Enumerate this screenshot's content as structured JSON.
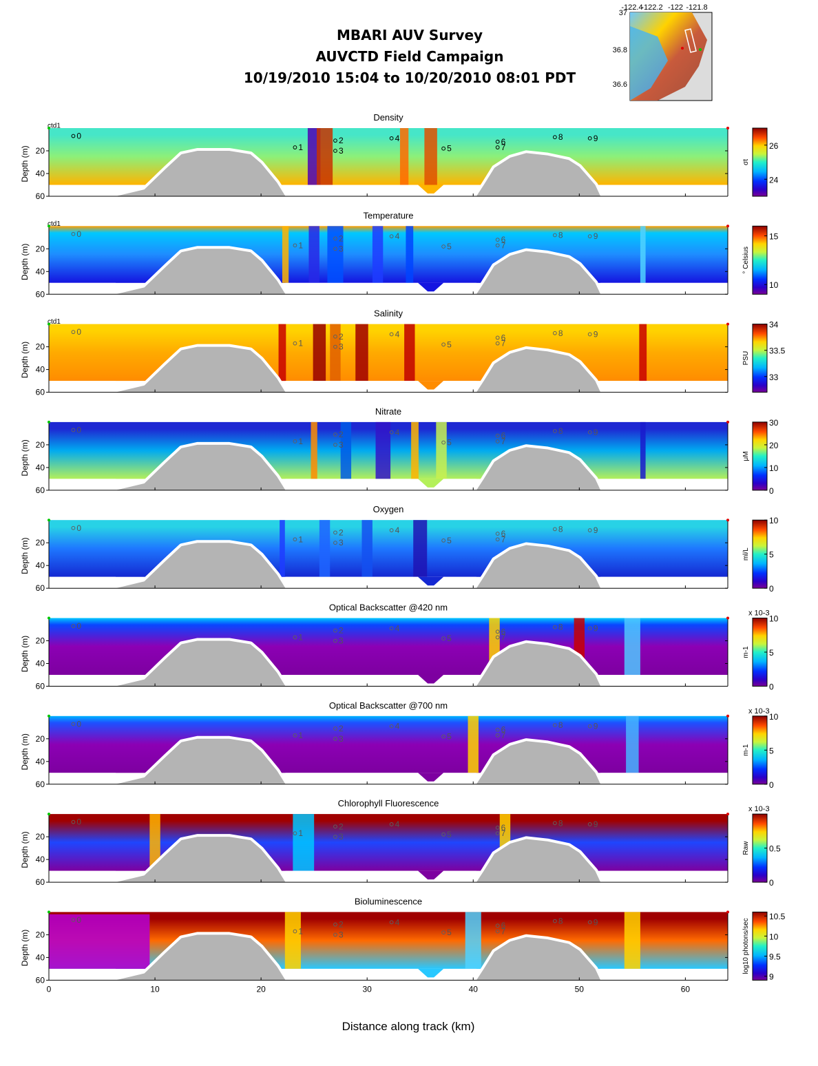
{
  "title": {
    "line1": "MBARI AUV Survey",
    "line2": "AUVCTD Field Campaign",
    "line3": "10/19/2010 15:04  to 10/20/2010 08:01 PDT"
  },
  "inset_map": {
    "x_ticks": [
      "-122.4",
      "-122.2",
      "-122",
      "-121.8"
    ],
    "y_ticks": [
      "37",
      "36.8",
      "36.6"
    ]
  },
  "chart_data": {
    "type": "heatmap",
    "xlabel": "Distance along track (km)",
    "ylabel": "Depth (m)",
    "xlim": [
      0,
      64
    ],
    "ylim": [
      60,
      0
    ],
    "x_ticks": [
      "0",
      "10",
      "20",
      "30",
      "40",
      "50",
      "60"
    ],
    "y_ticks": [
      "20",
      "40",
      "60"
    ],
    "platform_label": "ctd1",
    "stations": [
      {
        "label": "0",
        "km": 2.3,
        "depth": 7
      },
      {
        "label": "1",
        "km": 23.2,
        "depth": 17
      },
      {
        "label": "2",
        "km": 27.0,
        "depth": 11
      },
      {
        "label": "3",
        "km": 27.0,
        "depth": 20
      },
      {
        "label": "4",
        "km": 32.3,
        "depth": 9
      },
      {
        "label": "5",
        "km": 37.2,
        "depth": 18
      },
      {
        "label": "6",
        "km": 42.3,
        "depth": 12
      },
      {
        "label": "7",
        "km": 42.3,
        "depth": 17
      },
      {
        "label": "8",
        "km": 47.7,
        "depth": 8
      },
      {
        "label": "9",
        "km": 51.0,
        "depth": 9
      }
    ],
    "bathymetry": [
      [
        0,
        60
      ],
      [
        6.3,
        60
      ],
      [
        9,
        54
      ],
      [
        11,
        36
      ],
      [
        12.5,
        23
      ],
      [
        14,
        20
      ],
      [
        17,
        20
      ],
      [
        19,
        23
      ],
      [
        20,
        31
      ],
      [
        21.5,
        48
      ],
      [
        22.3,
        60
      ],
      [
        40.3,
        60
      ],
      [
        41,
        50
      ],
      [
        42,
        35
      ],
      [
        43.5,
        26
      ],
      [
        45,
        22
      ],
      [
        47,
        24
      ],
      [
        49,
        28
      ],
      [
        50,
        34
      ],
      [
        51.5,
        50
      ],
      [
        52,
        60
      ],
      [
        64,
        60
      ]
    ],
    "panels": [
      {
        "name": "Density",
        "units": "σt",
        "cticks": [
          "26",
          "24"
        ],
        "clim": [
          23,
          27
        ]
      },
      {
        "name": "Temperature",
        "units": "° Celsius",
        "cticks": [
          "15",
          "10"
        ],
        "clim": [
          9,
          16
        ]
      },
      {
        "name": "Salinity",
        "units": "PSU",
        "cticks": [
          "34",
          "33.5",
          "33"
        ],
        "clim": [
          32.7,
          34
        ]
      },
      {
        "name": "Nitrate",
        "units": "μM",
        "cticks": [
          "30",
          "20",
          "10",
          "0"
        ],
        "clim": [
          0,
          30
        ]
      },
      {
        "name": "Oxygen",
        "units": "ml/L",
        "cticks": [
          "10",
          "5",
          "0"
        ],
        "clim": [
          0,
          10
        ]
      },
      {
        "name": "Optical Backscatter @420 nm",
        "units": "m-1",
        "multiplier": "x 10-3",
        "cticks": [
          "10",
          "5",
          "0"
        ],
        "clim": [
          0,
          10
        ]
      },
      {
        "name": "Optical Backscatter @700 nm",
        "units": "m-1",
        "multiplier": "x 10-3",
        "cticks": [
          "10",
          "5",
          "0"
        ],
        "clim": [
          0,
          10
        ]
      },
      {
        "name": "Chlorophyll Fluorescence",
        "units": "Raw",
        "multiplier": "x 10-3",
        "cticks": [
          "0.5",
          "0"
        ],
        "clim": [
          0,
          1
        ]
      },
      {
        "name": "Bioluminescence",
        "units": "log10 photons/sec",
        "cticks": [
          "10.5",
          "10",
          "9.5",
          "9"
        ],
        "clim": [
          8.9,
          10.6
        ]
      }
    ]
  }
}
